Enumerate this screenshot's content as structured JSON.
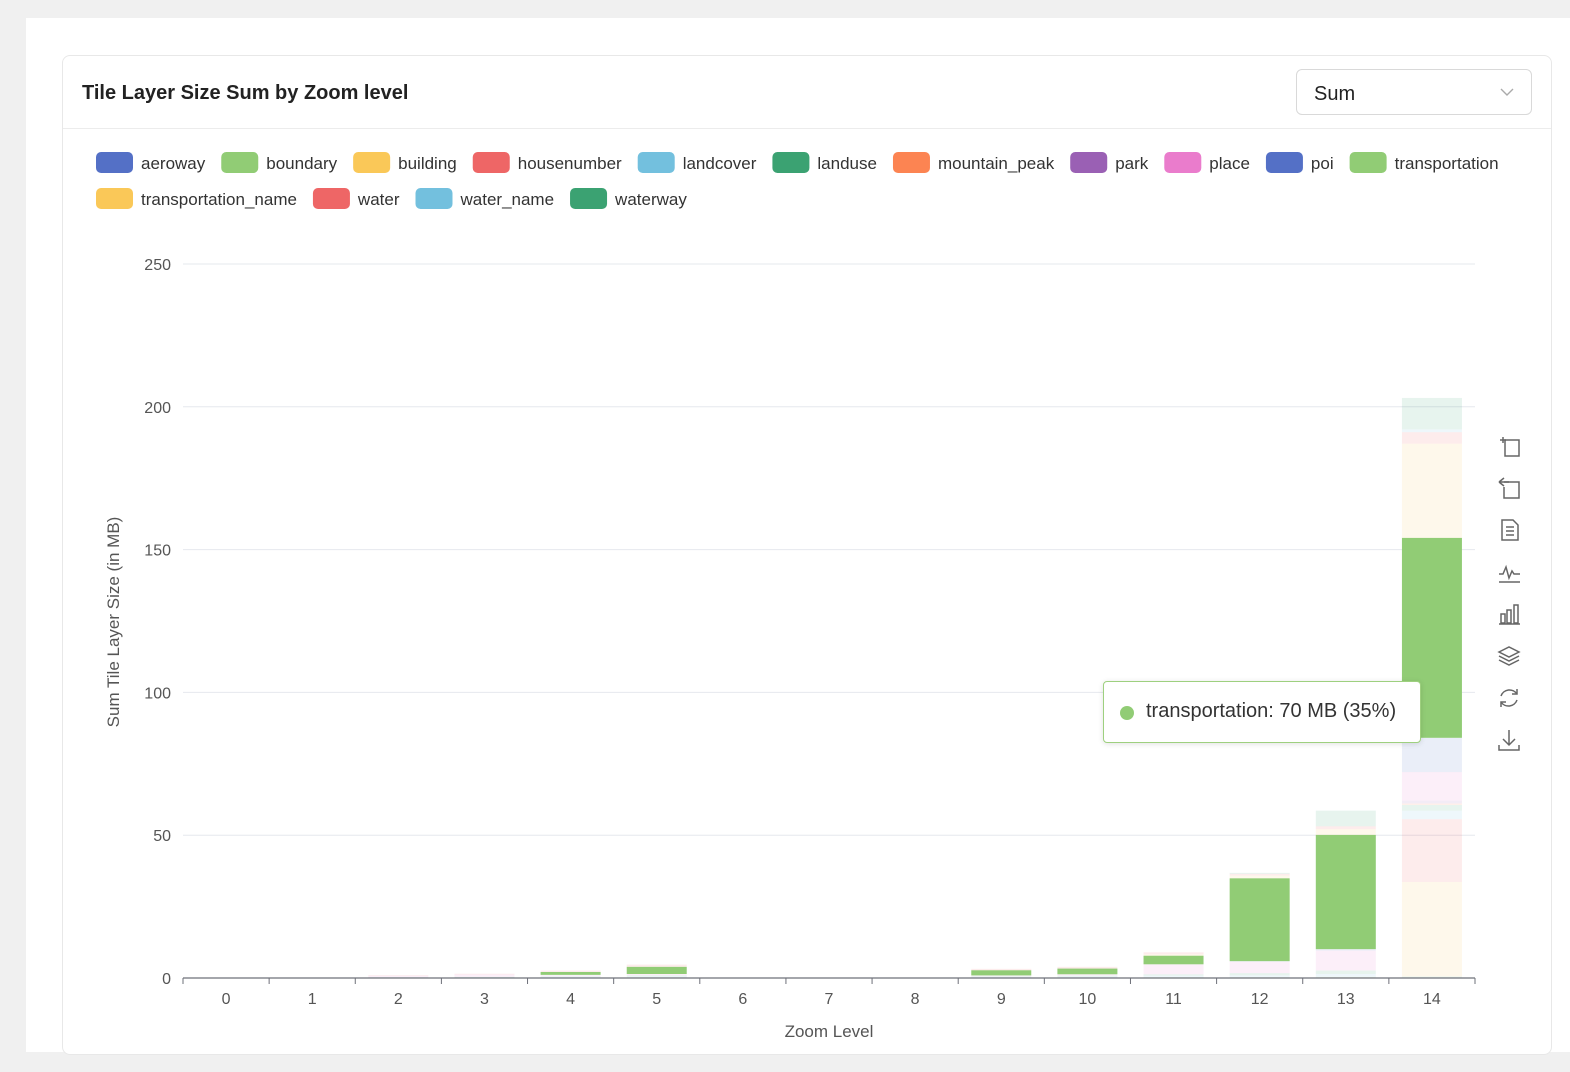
{
  "header": {
    "title": "Tile Layer Size Sum by Zoom level",
    "aggregate_select": {
      "value": "Sum"
    }
  },
  "tooltip": {
    "text": "transportation: 70 MB (35%)",
    "color": "#91cc75"
  },
  "toolbox": {
    "icons": [
      "zoom-icon",
      "zoom-reset-icon",
      "data-view-icon",
      "line-chart-icon",
      "bar-chart-icon",
      "stack-icon",
      "restore-icon",
      "download-icon"
    ]
  },
  "chart_data": {
    "type": "bar",
    "stacked": true,
    "title": "Tile Layer Size Sum by Zoom level",
    "xlabel": "Zoom Level",
    "ylabel": "Sum Tile Layer Size (in MB)",
    "ylim": [
      0,
      250
    ],
    "yticks": [
      0,
      50,
      100,
      150,
      200,
      250
    ],
    "grid": true,
    "legend_position": "top",
    "highlighted_series": "transportation",
    "categories": [
      "0",
      "1",
      "2",
      "3",
      "4",
      "5",
      "6",
      "7",
      "8",
      "9",
      "10",
      "11",
      "12",
      "13",
      "14"
    ],
    "series": [
      {
        "name": "aeroway",
        "color": "#5470c6",
        "values": [
          0,
          0,
          0,
          0,
          0,
          0,
          0,
          0,
          0,
          0,
          0,
          0,
          0,
          0,
          0.2
        ]
      },
      {
        "name": "boundary",
        "color": "#91cc75",
        "values": [
          0,
          0,
          0.1,
          0.2,
          0.2,
          0.3,
          0,
          0,
          0,
          0.2,
          0.2,
          0.3,
          0.3,
          0.4,
          0.4
        ]
      },
      {
        "name": "building",
        "color": "#fac858",
        "values": [
          0,
          0,
          0,
          0,
          0,
          0,
          0,
          0,
          0,
          0,
          0,
          0,
          0,
          0,
          33
        ]
      },
      {
        "name": "housenumber",
        "color": "#ee6666",
        "values": [
          0,
          0,
          0,
          0,
          0,
          0,
          0,
          0,
          0,
          0,
          0,
          0,
          0,
          0,
          22
        ]
      },
      {
        "name": "landcover",
        "color": "#73c0de",
        "values": [
          0,
          0,
          0.1,
          0.1,
          0.2,
          0.3,
          0,
          0,
          0,
          0.2,
          0.3,
          0.5,
          0.6,
          1,
          3
        ]
      },
      {
        "name": "landuse",
        "color": "#3ba272",
        "values": [
          0,
          0,
          0.1,
          0.1,
          0.2,
          0.3,
          0,
          0,
          0,
          0.2,
          0.3,
          0.5,
          0.8,
          1.2,
          2
        ]
      },
      {
        "name": "mountain_peak",
        "color": "#fc8452",
        "values": [
          0,
          0,
          0,
          0,
          0,
          0,
          0,
          0,
          0,
          0,
          0,
          0,
          0,
          0,
          0.5
        ]
      },
      {
        "name": "park",
        "color": "#9a60b4",
        "values": [
          0,
          0,
          0,
          0,
          0,
          0,
          0,
          0,
          0,
          0,
          0,
          0,
          0,
          0,
          1
        ]
      },
      {
        "name": "place",
        "color": "#ea7ccc",
        "values": [
          0,
          0,
          0.5,
          0.8,
          0.5,
          0.5,
          0,
          0,
          0,
          0.3,
          0.5,
          3.5,
          4,
          7,
          10
        ]
      },
      {
        "name": "poi",
        "color": "#5470c6",
        "values": [
          0,
          0,
          0,
          0,
          0,
          0,
          0,
          0,
          0,
          0,
          0,
          0,
          0.2,
          0.5,
          12
        ]
      },
      {
        "name": "transportation",
        "color": "#91cc75",
        "values": [
          0,
          0,
          0,
          0,
          1,
          2.5,
          0,
          0,
          0,
          1.8,
          2,
          3,
          29,
          40,
          70
        ]
      },
      {
        "name": "transportation_name",
        "color": "#fac858",
        "values": [
          0,
          0,
          0,
          0,
          0,
          0,
          0,
          0,
          0,
          0,
          0,
          0.5,
          1,
          2,
          33
        ]
      },
      {
        "name": "water",
        "color": "#ee6666",
        "values": [
          0,
          0,
          0.2,
          0.3,
          0.5,
          0.8,
          0,
          0,
          0,
          0.5,
          0.6,
          0.7,
          0.6,
          1,
          4
        ]
      },
      {
        "name": "water_name",
        "color": "#73c0de",
        "values": [
          0,
          0,
          0,
          0,
          0,
          0,
          0,
          0,
          0,
          0,
          0,
          0,
          0,
          0,
          1
        ]
      },
      {
        "name": "waterway",
        "color": "#3ba272",
        "values": [
          0,
          0,
          0,
          0,
          0,
          0,
          0,
          0,
          0,
          0,
          0,
          0,
          0.3,
          5.5,
          11
        ]
      }
    ]
  }
}
